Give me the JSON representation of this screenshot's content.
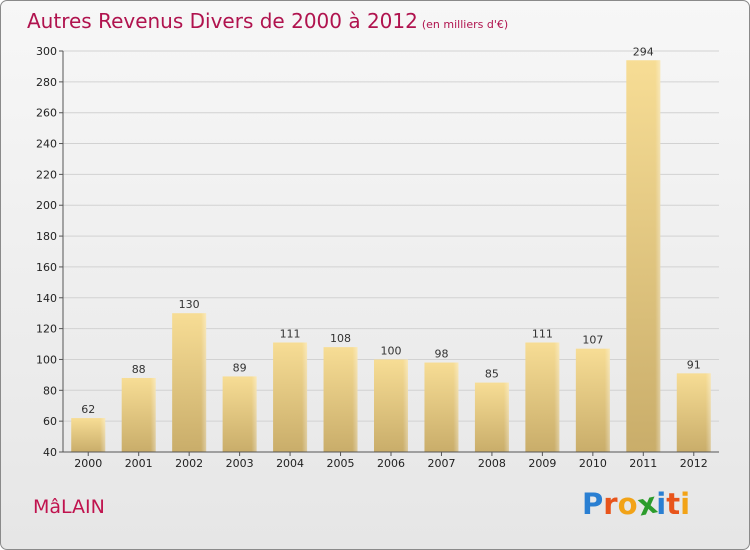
{
  "header": {
    "title": "Autres Revenus Divers de 2000 à 2012",
    "subtitle": "(en milliers d'€)"
  },
  "footer": {
    "commune": "MâLAIN",
    "logo_letters": [
      "P",
      "r",
      "o",
      "x",
      "i",
      "t",
      "i"
    ],
    "logo_colors": [
      "#2a7fd2",
      "#e8541b",
      "#f2a317",
      "#2c9c2c",
      "#2a7fd2",
      "#e8541b",
      "#f2a317"
    ]
  },
  "colors": {
    "title": "#b0134e",
    "bar_light": "#f7dd95",
    "bar_dark": "#c9ad6a",
    "axis": "#555555"
  },
  "chart_data": {
    "type": "bar",
    "title": "Autres Revenus Divers de 2000 à 2012",
    "subtitle": "(en milliers d'€)",
    "categories": [
      "2000",
      "2001",
      "2002",
      "2003",
      "2004",
      "2005",
      "2006",
      "2007",
      "2008",
      "2009",
      "2010",
      "2011",
      "2012"
    ],
    "values": [
      62,
      88,
      130,
      89,
      111,
      108,
      100,
      98,
      85,
      111,
      107,
      294,
      91
    ],
    "ylim": [
      40,
      300
    ],
    "yticks": [
      40,
      60,
      80,
      100,
      120,
      140,
      160,
      180,
      200,
      220,
      240,
      260,
      280,
      300
    ],
    "grid": true,
    "xlabel": "",
    "ylabel": ""
  }
}
